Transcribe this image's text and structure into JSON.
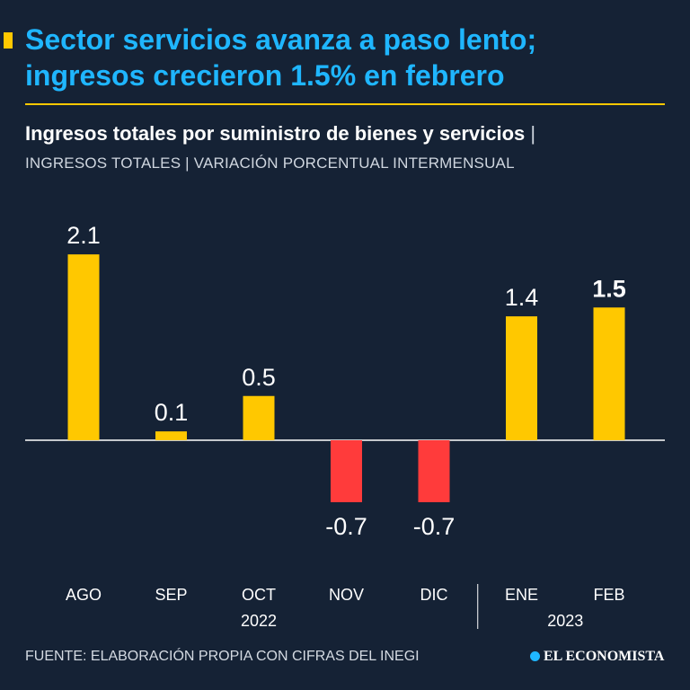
{
  "header": {
    "title_line1": "Sector servicios avanza a paso lento;",
    "title_line2": "ingresos crecieron 1.5% en febrero",
    "subtitle": "Ingresos totales por suministro de bienes y servicios",
    "subtitle_separator": "|",
    "subtitle2": "INGRESOS TOTALES | VARIACIÓN PORCENTUAL INTERMENSUAL"
  },
  "chart_data": {
    "type": "bar",
    "categories": [
      "AGO",
      "SEP",
      "OCT",
      "NOV",
      "DIC",
      "ENE",
      "FEB"
    ],
    "values": [
      2.1,
      0.1,
      0.5,
      -0.7,
      -0.7,
      1.4,
      1.5
    ],
    "value_labels": [
      "2.1",
      "0.1",
      "0.5",
      "-0.7",
      "-0.7",
      "1.4",
      "1.5"
    ],
    "highlight_index": 6,
    "year_groups": [
      {
        "label": "2022",
        "categories": [
          "AGO",
          "SEP",
          "OCT",
          "NOV",
          "DIC"
        ]
      },
      {
        "label": "2023",
        "categories": [
          "ENE",
          "FEB"
        ]
      }
    ],
    "title": "Ingresos totales por suministro de bienes y servicios",
    "xlabel": "",
    "ylabel": "",
    "ylim": [
      -0.9,
      2.1
    ],
    "colors": {
      "positive": "#ffc800",
      "negative": "#ff3b3b",
      "axis": "#ffffff"
    }
  },
  "footer": {
    "source": "FUENTE: ELABORACIÓN PROPIA CON CIFRAS DEL INEGI",
    "brand": "EL ECONOMISTA"
  }
}
